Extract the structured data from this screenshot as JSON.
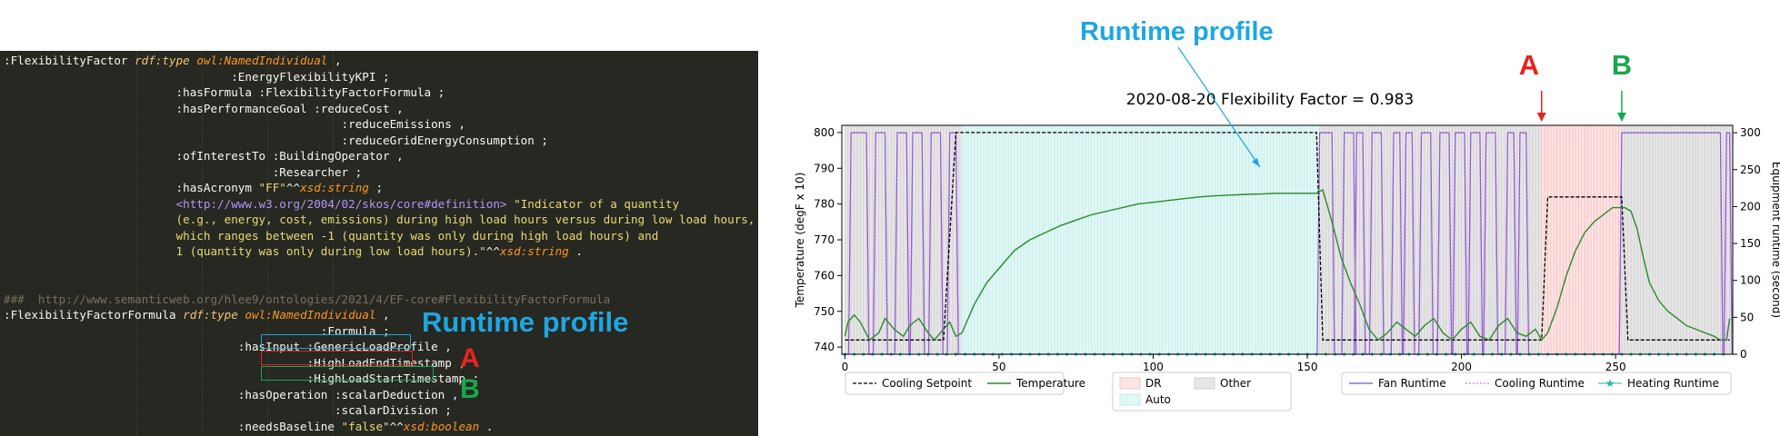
{
  "annotations": {
    "runtime_profile": "Runtime profile",
    "marker_a": "A",
    "marker_b": "B",
    "color_runtime": "#1ea7e0",
    "color_a": "#e8231f",
    "color_b": "#17a84b"
  },
  "code": {
    "lines": [
      [
        {
          "t": ":FlexibilityFactor "
        },
        {
          "t": "rdf:type",
          "c": "rdf"
        },
        {
          "t": " "
        },
        {
          "t": "owl:NamedIndividual",
          "c": "owl"
        },
        {
          "t": " ,"
        }
      ],
      [
        {
          "t": "                                 :EnergyFlexibilityKPI ;"
        }
      ],
      [
        {
          "t": "                         :hasFormula :FlexibilityFactorFormula ;"
        }
      ],
      [
        {
          "t": "                         :hasPerformanceGoal :reduceCost ,"
        }
      ],
      [
        {
          "t": "                                                 :reduceEmissions ,"
        }
      ],
      [
        {
          "t": "                                                 :reduceGridEnergyConsumption ;"
        }
      ],
      [
        {
          "t": "                         :ofInterestTo :BuildingOperator ,"
        }
      ],
      [
        {
          "t": "                                       :Researcher ;"
        }
      ],
      [
        {
          "t": "                         :hasAcronym "
        },
        {
          "t": "\"FF\"",
          "c": "str"
        },
        {
          "t": "^^"
        },
        {
          "t": "xsd:string",
          "c": "owl"
        },
        {
          "t": " ;"
        }
      ],
      [
        {
          "t": "                         "
        },
        {
          "t": "<http://www.w3.org/2004/02/skos/core#definition>",
          "c": "url"
        },
        {
          "t": " "
        },
        {
          "t": "\"Indicator of a quantity",
          "c": "str"
        }
      ],
      [
        {
          "t": "                         (e.g., energy, cost, emissions) during high load hours versus during low load hours,",
          "c": "str"
        }
      ],
      [
        {
          "t": "                         which ranges between -1 (quantity was only during high load hours) and",
          "c": "str"
        }
      ],
      [
        {
          "t": "                         1 (quantity was only during low load hours).\"",
          "c": "str"
        },
        {
          "t": "^^"
        },
        {
          "t": "xsd:string",
          "c": "owl"
        },
        {
          "t": " ."
        }
      ],
      [
        {
          "t": ""
        }
      ],
      [
        {
          "t": ""
        }
      ],
      [
        {
          "t": "###  http://www.semanticweb.org/hlee9/ontologies/2021/4/EF-core#FlexibilityFactorFormula",
          "c": "cmt"
        }
      ],
      [
        {
          "t": ":FlexibilityFactorFormula "
        },
        {
          "t": "rdf:type",
          "c": "rdf"
        },
        {
          "t": " "
        },
        {
          "t": "owl:NamedIndividual",
          "c": "owl"
        },
        {
          "t": " ,"
        }
      ],
      [
        {
          "t": "                                              :Formula ;"
        }
      ],
      [
        {
          "t": "                                  :hasInput :GenericLoadProfile ,"
        }
      ],
      [
        {
          "t": "                                            :HighLoadEndTimestamp ,"
        }
      ],
      [
        {
          "t": "                                            :HighLoadStartTimestamp ;"
        }
      ],
      [
        {
          "t": "                                  :hasOperation :scalarDeduction ,"
        }
      ],
      [
        {
          "t": "                                                :scalarDivision ;"
        }
      ],
      [
        {
          "t": "                                  :needsBaseline "
        },
        {
          "t": "\"false\"",
          "c": "str"
        },
        {
          "t": "^^"
        },
        {
          "t": "xsd:boolean",
          "c": "owl"
        },
        {
          "t": " ."
        }
      ]
    ]
  },
  "chart_data": {
    "type": "line",
    "title": "2020-08-20  Flexibility Factor = 0.983",
    "ylabel": "Temperature (degF x 10)",
    "y2label": "Equipment runtime (second)",
    "ylim": [
      738,
      802
    ],
    "y2lim": [
      0,
      310
    ],
    "xlim": [
      -1,
      288
    ],
    "xticks": [
      0,
      50,
      100,
      150,
      200,
      250
    ],
    "yticks": [
      740,
      750,
      760,
      770,
      780,
      790,
      800
    ],
    "y2ticks": [
      0,
      50,
      100,
      150,
      200,
      250,
      300
    ],
    "regions": [
      {
        "label": "Other",
        "start": 0,
        "end": 38
      },
      {
        "label": "Auto",
        "start": 38,
        "end": 154
      },
      {
        "label": "Other",
        "start": 154,
        "end": 226
      },
      {
        "label": "DR",
        "start": 226,
        "end": 252
      },
      {
        "label": "Other",
        "start": 252,
        "end": 288
      }
    ],
    "cooling_setpoint": {
      "name": "Cooling Setpoint",
      "x": [
        0,
        32,
        36,
        153,
        155,
        226,
        228,
        252,
        254,
        287
      ],
      "y": [
        742,
        742,
        800,
        800,
        742,
        742,
        782,
        782,
        742,
        742
      ]
    },
    "temperature": {
      "name": "Temperature",
      "x": [
        0,
        1,
        3,
        5,
        8,
        11,
        13,
        16,
        19,
        21,
        24,
        27,
        29,
        32,
        34,
        36,
        38,
        42,
        46,
        50,
        55,
        60,
        65,
        70,
        75,
        80,
        85,
        90,
        95,
        100,
        105,
        110,
        115,
        120,
        125,
        130,
        135,
        140,
        145,
        150,
        153,
        155,
        158,
        161,
        164,
        167,
        170,
        173,
        176,
        179,
        182,
        185,
        188,
        191,
        194,
        197,
        200,
        203,
        206,
        209,
        212,
        215,
        218,
        221,
        224,
        226,
        228,
        231,
        234,
        237,
        240,
        243,
        246,
        249,
        251,
        253,
        255,
        257,
        259,
        261,
        264,
        267,
        270,
        273,
        276,
        279,
        282,
        284,
        286,
        287
      ],
      "y": [
        743,
        747,
        749,
        747,
        742,
        744,
        748,
        745,
        743,
        746,
        748,
        744,
        742,
        745,
        747,
        743,
        744,
        752,
        758,
        762,
        767,
        770,
        772,
        774,
        775.5,
        777,
        778,
        779,
        780,
        780.5,
        781,
        781.5,
        782,
        782.3,
        782.5,
        782.7,
        782.8,
        783,
        783,
        783,
        783,
        784,
        775,
        765,
        758,
        752,
        745,
        742,
        744,
        747,
        745,
        743,
        746,
        748,
        744,
        742,
        745,
        747,
        743,
        742,
        746,
        748,
        744,
        743,
        745,
        742,
        744,
        751,
        760,
        767,
        772,
        775,
        777,
        779,
        779,
        779,
        778,
        773,
        765,
        758,
        753,
        750,
        748,
        746,
        745,
        744,
        743,
        742,
        742,
        748
      ]
    },
    "fan_runtime": {
      "name": "Fan Runtime",
      "peaks": [
        [
          2,
          7
        ],
        [
          10,
          13
        ],
        [
          17,
          20
        ],
        [
          22,
          25
        ],
        [
          28,
          31
        ],
        [
          34,
          36
        ],
        [
          154,
          158
        ],
        [
          162,
          165
        ],
        [
          166,
          168
        ],
        [
          171,
          174
        ],
        [
          178,
          180
        ],
        [
          182,
          184
        ],
        [
          187,
          190
        ],
        [
          193,
          196
        ],
        [
          198,
          201
        ],
        [
          203,
          206
        ],
        [
          208,
          211
        ],
        [
          215,
          217
        ],
        [
          219,
          221
        ],
        [
          252,
          284
        ],
        [
          286,
          287
        ]
      ],
      "high": 300
    },
    "cooling_runtime": {
      "name": "Cooling Runtime",
      "peaks_same_as_fan": true
    },
    "heating_runtime": {
      "name": "Heating Runtime",
      "value": 0
    },
    "legend": {
      "group1": [
        "Cooling Setpoint",
        "Temperature"
      ],
      "group2": [
        "DR",
        "Other",
        "Auto"
      ],
      "group3": [
        "Fan Runtime",
        "Cooling Runtime",
        "Heating Runtime"
      ]
    },
    "colors": {
      "setpoint": "#000000",
      "temperature": "#2a8a2a",
      "fan": "#6a55d6",
      "cooling": "#d65ad6",
      "heating": "#27b3a8",
      "dr": "#fde4e4",
      "auto": "#e2f7f5",
      "other": "#e6e6e6"
    }
  }
}
